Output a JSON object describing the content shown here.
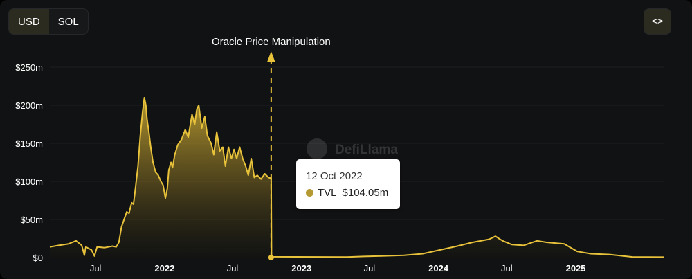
{
  "toolbar": {
    "currency_options": [
      "USD",
      "SOL"
    ],
    "selected_currency": "USD",
    "embed_label": "<>"
  },
  "tooltip": {
    "date": "12 Oct 2022",
    "series_label": "TVL",
    "value": "$104.05m"
  },
  "watermark": "DefiLlama",
  "colors": {
    "line": "#e8c23a",
    "marker": "#b59a33",
    "background": "#111213"
  },
  "chart_data": {
    "type": "area",
    "title": "",
    "xlabel": "",
    "ylabel": "",
    "ylim": [
      0,
      250
    ],
    "y_ticks": [
      {
        "value": 0,
        "label": "$0"
      },
      {
        "value": 50,
        "label": "$50m"
      },
      {
        "value": 100,
        "label": "$100m"
      },
      {
        "value": 150,
        "label": "$150m"
      },
      {
        "value": 200,
        "label": "$200m"
      },
      {
        "value": 250,
        "label": "$250m"
      }
    ],
    "x_range": [
      "2021-03-01",
      "2025-08-25"
    ],
    "x_ticks": [
      {
        "date": "2021-07-01",
        "label": "Jul",
        "bold": false
      },
      {
        "date": "2022-01-01",
        "label": "2022",
        "bold": true
      },
      {
        "date": "2022-07-01",
        "label": "Jul",
        "bold": false
      },
      {
        "date": "2023-01-01",
        "label": "2023",
        "bold": true
      },
      {
        "date": "2023-07-01",
        "label": "Jul",
        "bold": false
      },
      {
        "date": "2024-01-01",
        "label": "2024",
        "bold": true
      },
      {
        "date": "2024-07-01",
        "label": "Jul",
        "bold": false
      },
      {
        "date": "2025-01-01",
        "label": "2025",
        "bold": true
      }
    ],
    "grid": true,
    "legend": "none",
    "annotations": [
      {
        "date": "2022-10-12",
        "label": "Oracle Price Manipulation"
      }
    ],
    "series": [
      {
        "name": "TVL",
        "points": [
          [
            "2021-03-01",
            14
          ],
          [
            "2021-03-25",
            16
          ],
          [
            "2021-04-20",
            18
          ],
          [
            "2021-05-10",
            22
          ],
          [
            "2021-05-25",
            16
          ],
          [
            "2021-06-01",
            3
          ],
          [
            "2021-06-05",
            14
          ],
          [
            "2021-06-20",
            10
          ],
          [
            "2021-06-28",
            2
          ],
          [
            "2021-07-05",
            14
          ],
          [
            "2021-07-25",
            13
          ],
          [
            "2021-08-15",
            15
          ],
          [
            "2021-08-25",
            14
          ],
          [
            "2021-09-01",
            20
          ],
          [
            "2021-09-08",
            40
          ],
          [
            "2021-09-15",
            50
          ],
          [
            "2021-09-22",
            60
          ],
          [
            "2021-09-28",
            58
          ],
          [
            "2021-10-05",
            72
          ],
          [
            "2021-10-10",
            70
          ],
          [
            "2021-10-15",
            90
          ],
          [
            "2021-10-22",
            120
          ],
          [
            "2021-10-28",
            160
          ],
          [
            "2021-11-03",
            190
          ],
          [
            "2021-11-08",
            210
          ],
          [
            "2021-11-12",
            200
          ],
          [
            "2021-11-15",
            182
          ],
          [
            "2021-11-20",
            165
          ],
          [
            "2021-11-25",
            145
          ],
          [
            "2021-12-01",
            125
          ],
          [
            "2021-12-08",
            112
          ],
          [
            "2021-12-15",
            108
          ],
          [
            "2021-12-22",
            100
          ],
          [
            "2021-12-28",
            95
          ],
          [
            "2022-01-03",
            78
          ],
          [
            "2022-01-08",
            90
          ],
          [
            "2022-01-12",
            115
          ],
          [
            "2022-01-18",
            125
          ],
          [
            "2022-01-22",
            118
          ],
          [
            "2022-01-28",
            135
          ],
          [
            "2022-02-05",
            148
          ],
          [
            "2022-02-15",
            155
          ],
          [
            "2022-02-25",
            168
          ],
          [
            "2022-03-05",
            158
          ],
          [
            "2022-03-15",
            188
          ],
          [
            "2022-03-22",
            175
          ],
          [
            "2022-03-28",
            195
          ],
          [
            "2022-04-02",
            200
          ],
          [
            "2022-04-10",
            170
          ],
          [
            "2022-04-18",
            185
          ],
          [
            "2022-04-25",
            160
          ],
          [
            "2022-05-05",
            150
          ],
          [
            "2022-05-12",
            135
          ],
          [
            "2022-05-20",
            165
          ],
          [
            "2022-05-28",
            140
          ],
          [
            "2022-06-05",
            145
          ],
          [
            "2022-06-12",
            120
          ],
          [
            "2022-06-20",
            145
          ],
          [
            "2022-06-28",
            130
          ],
          [
            "2022-07-05",
            142
          ],
          [
            "2022-07-12",
            130
          ],
          [
            "2022-07-20",
            145
          ],
          [
            "2022-07-28",
            130
          ],
          [
            "2022-08-05",
            120
          ],
          [
            "2022-08-12",
            108
          ],
          [
            "2022-08-20",
            130
          ],
          [
            "2022-08-28",
            105
          ],
          [
            "2022-09-05",
            108
          ],
          [
            "2022-09-15",
            103
          ],
          [
            "2022-09-25",
            110
          ],
          [
            "2022-10-05",
            105
          ],
          [
            "2022-10-12",
            104.05
          ],
          [
            "2022-10-13",
            1
          ],
          [
            "2023-05-01",
            0.6
          ],
          [
            "2023-06-15",
            1.5
          ],
          [
            "2023-08-01",
            2
          ],
          [
            "2023-10-01",
            3
          ],
          [
            "2023-11-20",
            5
          ],
          [
            "2024-01-05",
            10
          ],
          [
            "2024-02-20",
            15
          ],
          [
            "2024-04-01",
            20
          ],
          [
            "2024-05-15",
            24
          ],
          [
            "2024-06-01",
            28
          ],
          [
            "2024-06-10",
            25
          ],
          [
            "2024-06-20",
            22
          ],
          [
            "2024-07-15",
            17
          ],
          [
            "2024-08-15",
            16
          ],
          [
            "2024-09-20",
            22
          ],
          [
            "2024-10-15",
            20
          ],
          [
            "2024-12-01",
            18
          ],
          [
            "2025-01-05",
            8
          ],
          [
            "2025-02-10",
            5
          ],
          [
            "2025-04-01",
            4
          ],
          [
            "2025-06-01",
            0.8
          ],
          [
            "2025-08-25",
            0.5
          ]
        ]
      }
    ]
  }
}
